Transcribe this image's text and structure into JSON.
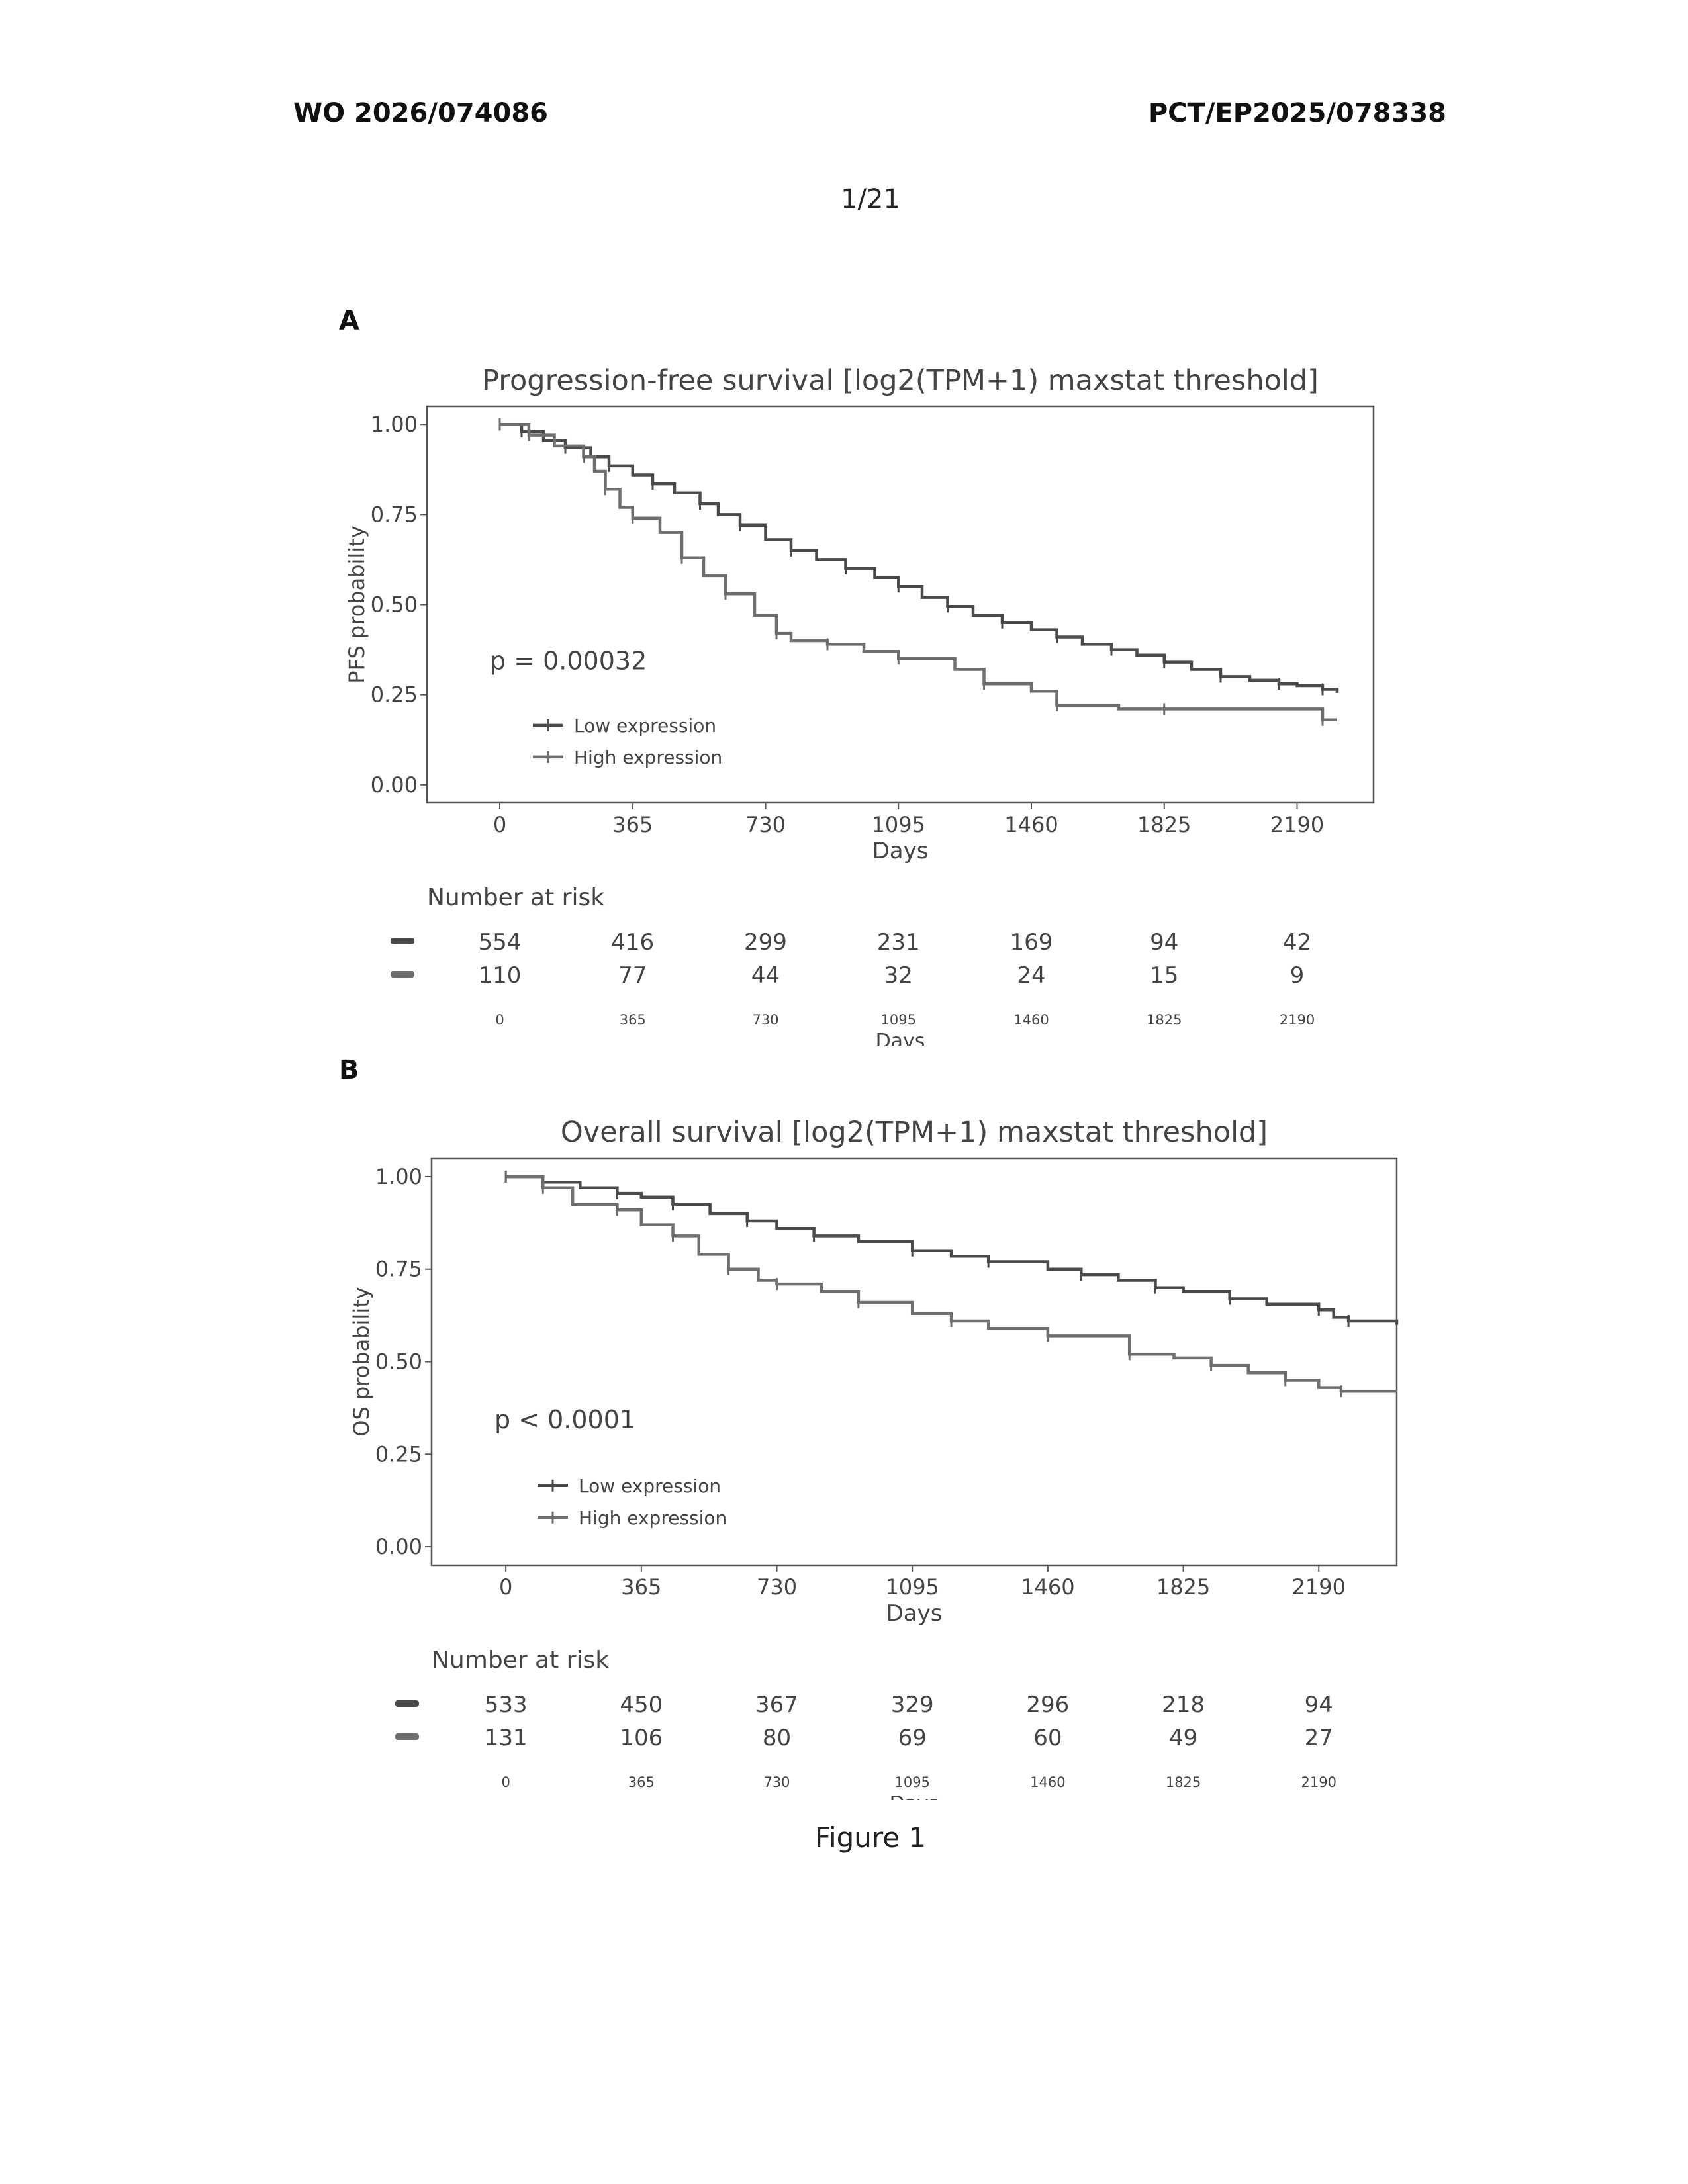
{
  "header": {
    "left": "WO 2026/074086",
    "right": "PCT/EP2025/078338",
    "page_number": "1/21"
  },
  "figure_caption": "Figure 1",
  "chart_data": [
    {
      "panel": "A",
      "type": "line",
      "title": "Progression-free survival [log2(TPM+1) maxstat threshold]",
      "xlabel": "Days",
      "ylabel": "PFS probability",
      "xlim": [
        -200,
        2400
      ],
      "ylim": [
        -0.05,
        1.05
      ],
      "x_ticks": [
        0,
        365,
        730,
        1095,
        1460,
        1825,
        2190
      ],
      "y_ticks": [
        "0.00",
        "0.25",
        "0.50",
        "0.75",
        "1.00"
      ],
      "pvalue": "p = 0.00032",
      "legend": {
        "position": "bottom-left",
        "entries": [
          "Low expression",
          "High expression"
        ]
      },
      "series": [
        {
          "name": "Low expression",
          "points": [
            [
              0,
              1.0
            ],
            [
              60,
              0.98
            ],
            [
              120,
              0.955
            ],
            [
              180,
              0.935
            ],
            [
              250,
              0.91
            ],
            [
              300,
              0.885
            ],
            [
              365,
              0.86
            ],
            [
              420,
              0.835
            ],
            [
              480,
              0.81
            ],
            [
              550,
              0.78
            ],
            [
              600,
              0.75
            ],
            [
              660,
              0.72
            ],
            [
              730,
              0.68
            ],
            [
              800,
              0.65
            ],
            [
              870,
              0.625
            ],
            [
              950,
              0.6
            ],
            [
              1030,
              0.575
            ],
            [
              1095,
              0.55
            ],
            [
              1160,
              0.52
            ],
            [
              1230,
              0.495
            ],
            [
              1300,
              0.47
            ],
            [
              1380,
              0.45
            ],
            [
              1460,
              0.43
            ],
            [
              1530,
              0.41
            ],
            [
              1600,
              0.39
            ],
            [
              1680,
              0.375
            ],
            [
              1750,
              0.36
            ],
            [
              1825,
              0.34
            ],
            [
              1900,
              0.32
            ],
            [
              1980,
              0.3
            ],
            [
              2060,
              0.29
            ],
            [
              2140,
              0.28
            ],
            [
              2190,
              0.275
            ],
            [
              2260,
              0.265
            ],
            [
              2300,
              0.255
            ]
          ]
        },
        {
          "name": "High expression",
          "points": [
            [
              0,
              1.0
            ],
            [
              80,
              0.97
            ],
            [
              150,
              0.94
            ],
            [
              230,
              0.91
            ],
            [
              260,
              0.87
            ],
            [
              290,
              0.82
            ],
            [
              330,
              0.77
            ],
            [
              365,
              0.74
            ],
            [
              440,
              0.7
            ],
            [
              500,
              0.63
            ],
            [
              560,
              0.58
            ],
            [
              620,
              0.53
            ],
            [
              700,
              0.47
            ],
            [
              760,
              0.42
            ],
            [
              800,
              0.4
            ],
            [
              900,
              0.39
            ],
            [
              1000,
              0.37
            ],
            [
              1095,
              0.35
            ],
            [
              1250,
              0.32
            ],
            [
              1330,
              0.28
            ],
            [
              1460,
              0.26
            ],
            [
              1530,
              0.22
            ],
            [
              1700,
              0.21
            ],
            [
              1825,
              0.21
            ],
            [
              2190,
              0.21
            ],
            [
              2260,
              0.18
            ],
            [
              2300,
              0.18
            ]
          ]
        }
      ],
      "risk_table": {
        "title": "Number at risk",
        "times": [
          0,
          365,
          730,
          1095,
          1460,
          1825,
          2190
        ],
        "xlabel": "Days",
        "rows": [
          {
            "values": [
              "554",
              "416",
              "299",
              "231",
              "169",
              "94",
              "42"
            ]
          },
          {
            "values": [
              "110",
              "77",
              "44",
              "32",
              "24",
              "15",
              "9"
            ]
          }
        ]
      }
    },
    {
      "panel": "B",
      "type": "line",
      "title": "Overall survival [log2(TPM+1) maxstat threshold]",
      "xlabel": "Days",
      "ylabel": "OS probability",
      "xlim": [
        -200,
        2400
      ],
      "ylim": [
        -0.05,
        1.05
      ],
      "x_ticks": [
        0,
        365,
        730,
        1095,
        1460,
        1825,
        2190
      ],
      "y_ticks": [
        "0.00",
        "0.25",
        "0.50",
        "0.75",
        "1.00"
      ],
      "pvalue": "p < 0.0001",
      "legend": {
        "position": "bottom-left",
        "entries": [
          "Low expression",
          "High expression"
        ]
      },
      "series": [
        {
          "name": "Low expression",
          "points": [
            [
              0,
              1.0
            ],
            [
              100,
              0.985
            ],
            [
              200,
              0.97
            ],
            [
              300,
              0.955
            ],
            [
              365,
              0.945
            ],
            [
              450,
              0.925
            ],
            [
              550,
              0.9
            ],
            [
              650,
              0.88
            ],
            [
              730,
              0.86
            ],
            [
              830,
              0.84
            ],
            [
              950,
              0.825
            ],
            [
              1095,
              0.8
            ],
            [
              1200,
              0.785
            ],
            [
              1300,
              0.77
            ],
            [
              1460,
              0.75
            ],
            [
              1550,
              0.735
            ],
            [
              1650,
              0.72
            ],
            [
              1750,
              0.7
            ],
            [
              1825,
              0.69
            ],
            [
              1950,
              0.67
            ],
            [
              2050,
              0.655
            ],
            [
              2190,
              0.64
            ],
            [
              2230,
              0.62
            ],
            [
              2270,
              0.61
            ],
            [
              2400,
              0.6
            ]
          ]
        },
        {
          "name": "High expression",
          "points": [
            [
              0,
              1.0
            ],
            [
              100,
              0.97
            ],
            [
              180,
              0.925
            ],
            [
              300,
              0.91
            ],
            [
              365,
              0.87
            ],
            [
              450,
              0.84
            ],
            [
              520,
              0.79
            ],
            [
              600,
              0.75
            ],
            [
              680,
              0.72
            ],
            [
              730,
              0.71
            ],
            [
              850,
              0.69
            ],
            [
              950,
              0.66
            ],
            [
              1095,
              0.63
            ],
            [
              1200,
              0.61
            ],
            [
              1300,
              0.59
            ],
            [
              1460,
              0.57
            ],
            [
              1650,
              0.57
            ],
            [
              1680,
              0.52
            ],
            [
              1800,
              0.51
            ],
            [
              1900,
              0.49
            ],
            [
              2000,
              0.47
            ],
            [
              2100,
              0.45
            ],
            [
              2190,
              0.43
            ],
            [
              2250,
              0.42
            ],
            [
              2400,
              0.42
            ]
          ]
        }
      ],
      "risk_table": {
        "title": "Number at risk",
        "times": [
          0,
          365,
          730,
          1095,
          1460,
          1825,
          2190
        ],
        "xlabel": "Days",
        "rows": [
          {
            "values": [
              "533",
              "450",
              "367",
              "329",
              "296",
              "218",
              "94"
            ]
          },
          {
            "values": [
              "131",
              "106",
              "80",
              "69",
              "60",
              "49",
              "27"
            ]
          }
        ]
      }
    }
  ]
}
